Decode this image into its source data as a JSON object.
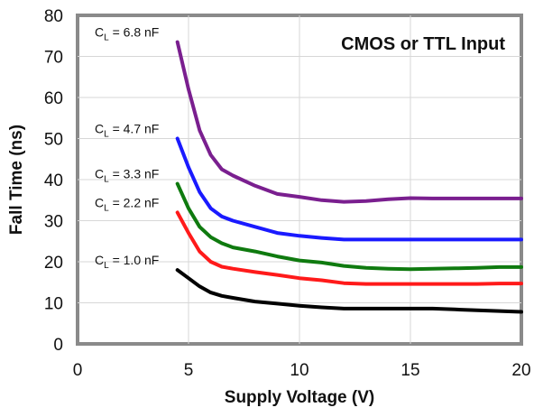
{
  "chart_data": {
    "type": "line",
    "title": "CMOS or TTL Input",
    "xlabel": "Supply Voltage (V)",
    "ylabel": "Fall Time (ns)",
    "xlim": [
      0,
      20
    ],
    "ylim": [
      0,
      80
    ],
    "xticks": [
      "0",
      "5",
      "10",
      "15",
      "20"
    ],
    "yticks": [
      "0",
      "10",
      "20",
      "30",
      "40",
      "50",
      "60",
      "70",
      "80"
    ],
    "grid": true,
    "series": [
      {
        "name": "= 6.8 nF",
        "color": "#7a1f8f",
        "points": [
          [
            4.5,
            73.5
          ],
          [
            5.0,
            62.0
          ],
          [
            5.5,
            52.0
          ],
          [
            6.0,
            46.0
          ],
          [
            6.5,
            42.5
          ],
          [
            7.0,
            41.0
          ],
          [
            8.0,
            38.5
          ],
          [
            9.0,
            36.5
          ],
          [
            10.0,
            35.8
          ],
          [
            11.0,
            35.0
          ],
          [
            12.0,
            34.6
          ],
          [
            13.0,
            34.8
          ],
          [
            14.0,
            35.2
          ],
          [
            15.0,
            35.5
          ],
          [
            16.0,
            35.4
          ],
          [
            17.0,
            35.4
          ],
          [
            18.0,
            35.4
          ],
          [
            19.0,
            35.4
          ],
          [
            20.0,
            35.4
          ]
        ]
      },
      {
        "name": "= 4.7 nF",
        "color": "#1a1aff",
        "points": [
          [
            4.5,
            50.0
          ],
          [
            5.0,
            43.0
          ],
          [
            5.5,
            37.0
          ],
          [
            6.0,
            33.0
          ],
          [
            6.5,
            31.0
          ],
          [
            7.0,
            30.0
          ],
          [
            8.0,
            28.5
          ],
          [
            9.0,
            27.0
          ],
          [
            10.0,
            26.3
          ],
          [
            11.0,
            25.8
          ],
          [
            12.0,
            25.4
          ],
          [
            13.0,
            25.4
          ],
          [
            14.0,
            25.4
          ],
          [
            15.0,
            25.4
          ],
          [
            16.0,
            25.4
          ],
          [
            17.0,
            25.4
          ],
          [
            18.0,
            25.4
          ],
          [
            19.0,
            25.4
          ],
          [
            20.0,
            25.4
          ]
        ]
      },
      {
        "name": "= 3.3 nF",
        "color": "#0f7a0f",
        "points": [
          [
            4.5,
            39.0
          ],
          [
            5.0,
            33.0
          ],
          [
            5.5,
            28.5
          ],
          [
            6.0,
            26.0
          ],
          [
            6.5,
            24.5
          ],
          [
            7.0,
            23.5
          ],
          [
            8.0,
            22.5
          ],
          [
            9.0,
            21.3
          ],
          [
            10.0,
            20.3
          ],
          [
            11.0,
            19.8
          ],
          [
            12.0,
            19.0
          ],
          [
            13.0,
            18.5
          ],
          [
            14.0,
            18.3
          ],
          [
            15.0,
            18.2
          ],
          [
            16.0,
            18.3
          ],
          [
            17.0,
            18.4
          ],
          [
            18.0,
            18.5
          ],
          [
            19.0,
            18.7
          ],
          [
            20.0,
            18.7
          ]
        ]
      },
      {
        "name": "= 2.2 nF",
        "color": "#ff1a1a",
        "points": [
          [
            4.5,
            32.0
          ],
          [
            5.0,
            27.0
          ],
          [
            5.5,
            22.5
          ],
          [
            6.0,
            20.0
          ],
          [
            6.5,
            18.8
          ],
          [
            7.0,
            18.3
          ],
          [
            8.0,
            17.5
          ],
          [
            9.0,
            16.8
          ],
          [
            10.0,
            16.0
          ],
          [
            11.0,
            15.5
          ],
          [
            12.0,
            14.8
          ],
          [
            13.0,
            14.6
          ],
          [
            14.0,
            14.6
          ],
          [
            15.0,
            14.6
          ],
          [
            16.0,
            14.6
          ],
          [
            17.0,
            14.6
          ],
          [
            18.0,
            14.6
          ],
          [
            19.0,
            14.7
          ],
          [
            20.0,
            14.7
          ]
        ]
      },
      {
        "name": "= 1.0 nF",
        "color": "#000000",
        "points": [
          [
            4.5,
            18.0
          ],
          [
            5.0,
            16.0
          ],
          [
            5.5,
            14.0
          ],
          [
            6.0,
            12.5
          ],
          [
            6.5,
            11.7
          ],
          [
            7.0,
            11.2
          ],
          [
            8.0,
            10.3
          ],
          [
            9.0,
            9.8
          ],
          [
            10.0,
            9.3
          ],
          [
            11.0,
            8.9
          ],
          [
            12.0,
            8.6
          ],
          [
            13.0,
            8.6
          ],
          [
            14.0,
            8.6
          ],
          [
            15.0,
            8.6
          ],
          [
            16.0,
            8.6
          ],
          [
            17.0,
            8.4
          ],
          [
            18.0,
            8.2
          ],
          [
            19.0,
            8.0
          ],
          [
            20.0,
            7.8
          ]
        ]
      }
    ],
    "series_label_prefix": "C",
    "series_label_subscript": "L"
  }
}
